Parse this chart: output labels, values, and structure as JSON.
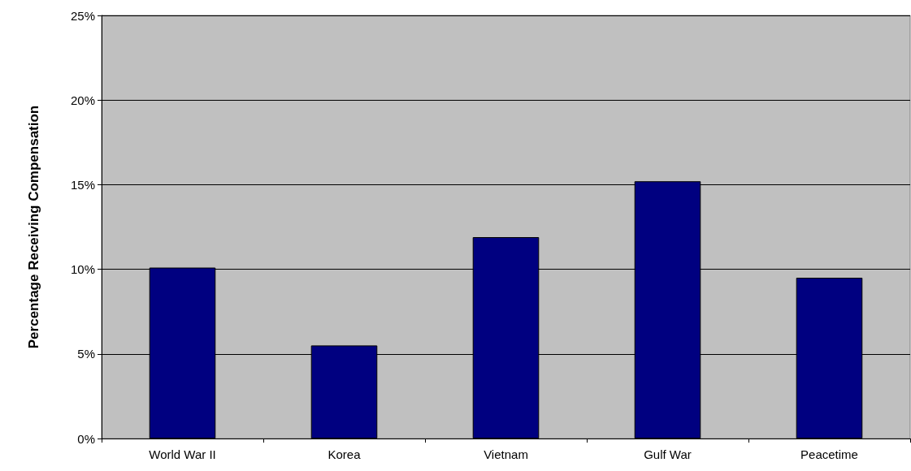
{
  "chart_data": {
    "type": "bar",
    "ylabel": "Percentage Receiving Compensation",
    "categories": [
      "World War II",
      "Korea",
      "Vietnam",
      "Gulf War",
      "Peacetime"
    ],
    "values": [
      10.1,
      5.5,
      11.9,
      15.2,
      9.5
    ],
    "color": "#000080",
    "ylim": [
      0,
      25
    ],
    "yticks": [
      {
        "value": 0,
        "label": "0%"
      },
      {
        "value": 5,
        "label": "5%"
      },
      {
        "value": 10,
        "label": "10%"
      },
      {
        "value": 15,
        "label": "15%"
      },
      {
        "value": 20,
        "label": "20%"
      },
      {
        "value": 25,
        "label": "25%"
      }
    ],
    "grid": "y"
  }
}
